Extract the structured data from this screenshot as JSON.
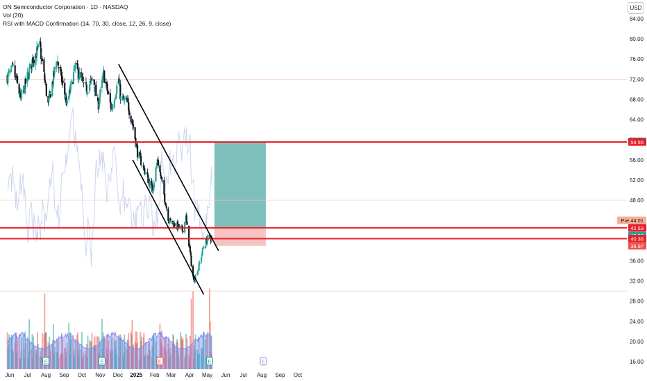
{
  "header": {
    "title": "ON Semiconductor Corporation · 1D · NASDAQ",
    "vol_label": "Vol (20)",
    "indicator_label": "RSI with MACD Confirmation (14, 70, 30, close, 12, 26, 9, close)",
    "currency_button": "USD"
  },
  "colors": {
    "up": "#26a69a",
    "down": "#ef5350",
    "horizontal_line": "#e8202a",
    "trendline": "#000000",
    "target_zone": "#7fbfbc",
    "stop_zone": "#f2b8b8",
    "rsi_line": "#c7d2f0",
    "volume_ma": "#7e8ef0"
  },
  "chart_data": {
    "type": "candlestick",
    "title": "ON Semiconductor Corporation · 1D · NASDAQ",
    "ylim": [
      14.5,
      87
    ],
    "y_ticks": [
      "84.00",
      "80.00",
      "76.00",
      "72.00",
      "68.00",
      "64.00",
      "60.00",
      "56.00",
      "52.00",
      "48.00",
      "44.00",
      "40.00",
      "36.00",
      "32.00",
      "28.00",
      "24.00",
      "20.00",
      "16.00"
    ],
    "x_ticks": [
      "Jun",
      "Jul",
      "Aug",
      "Sep",
      "Oct",
      "Nov",
      "Dec",
      "2025",
      "Feb",
      "Mar",
      "Apr",
      "May",
      "Jun",
      "Jul",
      "Aug",
      "Sep",
      "Oct"
    ],
    "price_anchors": [
      {
        "date": "2024-05-28",
        "price": 72.5
      },
      {
        "date": "2024-06-07",
        "price": 74.0
      },
      {
        "date": "2024-06-20",
        "price": 68.0
      },
      {
        "date": "2024-07-10",
        "price": 76.0
      },
      {
        "date": "2024-07-22",
        "price": 78.5
      },
      {
        "date": "2024-08-05",
        "price": 67.0
      },
      {
        "date": "2024-08-20",
        "price": 76.0
      },
      {
        "date": "2024-09-06",
        "price": 67.0
      },
      {
        "date": "2024-09-20",
        "price": 74.5
      },
      {
        "date": "2024-10-07",
        "price": 70.0
      },
      {
        "date": "2024-10-21",
        "price": 72.0
      },
      {
        "date": "2024-10-28",
        "price": 66.5
      },
      {
        "date": "2024-11-07",
        "price": 73.0
      },
      {
        "date": "2024-11-20",
        "price": 66.0
      },
      {
        "date": "2024-12-02",
        "price": 72.0
      },
      {
        "date": "2024-12-06",
        "price": 68.0
      },
      {
        "date": "2024-12-18",
        "price": 67.0
      },
      {
        "date": "2024-12-27",
        "price": 62.5
      },
      {
        "date": "2025-01-03",
        "price": 57.5
      },
      {
        "date": "2025-01-13",
        "price": 54.5
      },
      {
        "date": "2025-01-28",
        "price": 50.0
      },
      {
        "date": "2025-02-06",
        "price": 56.0
      },
      {
        "date": "2025-02-14",
        "price": 51.0
      },
      {
        "date": "2025-02-25",
        "price": 44.0
      },
      {
        "date": "2025-03-10",
        "price": 43.0
      },
      {
        "date": "2025-03-20",
        "price": 42.0
      },
      {
        "date": "2025-03-26",
        "price": 44.5
      },
      {
        "date": "2025-04-04",
        "price": 35.5
      },
      {
        "date": "2025-04-08",
        "price": 32.0
      },
      {
        "date": "2025-04-16",
        "price": 34.5
      },
      {
        "date": "2025-04-24",
        "price": 38.5
      },
      {
        "date": "2025-05-02",
        "price": 40.5
      },
      {
        "date": "2025-05-09",
        "price": 40.4
      }
    ],
    "horizontal_lines": [
      59.55,
      42.53,
      40.38
    ],
    "trendlines": [
      {
        "from": {
          "date": "2024-12-02",
          "price": 75.0
        },
        "to": {
          "date": "2025-05-20",
          "price": 38.0
        }
      },
      {
        "from": {
          "date": "2024-12-26",
          "price": 56.0
        },
        "to": {
          "date": "2025-04-25",
          "price": 29.3
        }
      }
    ],
    "position": {
      "entry": 42.53,
      "target": 59.55,
      "stop": 38.97,
      "from_date": "2025-05-13",
      "to_date": "2025-08-08"
    },
    "price_labels": [
      {
        "text": "59.65",
        "price": 59.65,
        "color": "#26a69a"
      },
      {
        "text": "59.55",
        "price": 59.55,
        "color": "#e8202a"
      },
      {
        "text": "Pre 44.01",
        "price": 44.01,
        "color": "#f5b096"
      },
      {
        "text": "42.58",
        "price": 42.58,
        "color": "#e6e8ec"
      },
      {
        "text": "42.53",
        "price": 42.53,
        "color": "#e8202a"
      },
      {
        "text": "40.98",
        "price": 40.98,
        "color": "#26a69a"
      },
      {
        "text": "40.38",
        "price": 40.38,
        "color": "#e8202a"
      },
      {
        "text": "38.97",
        "price": 38.97,
        "color": "#ef5350"
      }
    ],
    "event_markers": [
      {
        "date": "2024-08-01",
        "label": "E",
        "kind": "past"
      },
      {
        "date": "2024-11-04",
        "label": "E",
        "kind": "past"
      },
      {
        "date": "2025-02-10",
        "label": "E",
        "kind": "past-negative"
      },
      {
        "date": "2025-05-05",
        "label": "E",
        "kind": "past"
      },
      {
        "date": "2025-08-04",
        "label": "E",
        "kind": "upcoming"
      }
    ],
    "volume": {
      "notable_spikes": [
        {
          "date": "2024-07-30",
          "value": 29.5
        },
        {
          "date": "2024-11-04",
          "value": 24.5
        },
        {
          "date": "2025-02-10",
          "value": 23.5
        },
        {
          "date": "2025-04-04",
          "value": 28.5
        },
        {
          "date": "2025-04-07",
          "value": 30.0
        },
        {
          "date": "2025-05-05",
          "value": 30.5
        }
      ],
      "moving_average_level": [
        18.5,
        22.0
      ]
    },
    "rsi_overlay": "RSI line drawn faintly behind price (range roughly 20–80)",
    "grid": false
  }
}
